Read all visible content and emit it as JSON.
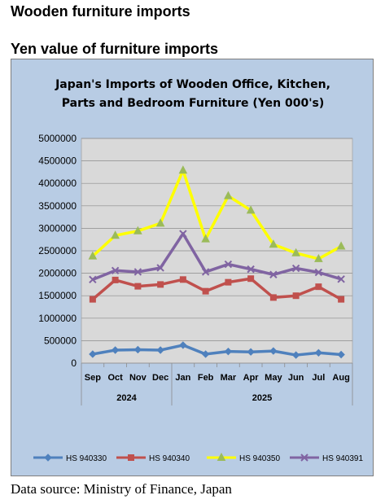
{
  "page": {
    "title": "Wooden furniture imports",
    "subtitle": "Yen value of furniture imports",
    "source": "Data source: Ministry of Finance, Japan"
  },
  "chart_data": {
    "type": "line",
    "title_lines": [
      "Japan's Imports of  Wooden  Office, Kitchen,",
      "Parts and Bedroom Furniture (Yen 000's)"
    ],
    "xlabel": "",
    "ylabel": "",
    "ylim": [
      0,
      5000000
    ],
    "yticks": [
      0,
      500000,
      1000000,
      1500000,
      2000000,
      2500000,
      3000000,
      3500000,
      4000000,
      4500000,
      5000000
    ],
    "categories": [
      "Sep",
      "Oct",
      "Nov",
      "Dec",
      "Jan",
      "Feb",
      "Mar",
      "Apr",
      "May",
      "Jun",
      "Jul",
      "Aug"
    ],
    "category_groups": [
      {
        "label": "2024",
        "count": 4
      },
      {
        "label": "2025",
        "count": 8
      }
    ],
    "grid": true,
    "legend_position": "bottom",
    "series": [
      {
        "name": "HS 940330",
        "color": "#4f81bd",
        "marker": "diamond",
        "values": [
          200000,
          290000,
          300000,
          290000,
          400000,
          200000,
          260000,
          250000,
          270000,
          180000,
          230000,
          190000
        ]
      },
      {
        "name": "HS 940340",
        "color": "#c0504d",
        "marker": "square",
        "values": [
          1420000,
          1850000,
          1710000,
          1750000,
          1860000,
          1600000,
          1800000,
          1880000,
          1460000,
          1500000,
          1700000,
          1420000
        ]
      },
      {
        "name": "HS 940350",
        "color": "#ffff00",
        "marker": "triangle",
        "values": [
          2380000,
          2840000,
          2940000,
          3110000,
          4290000,
          2760000,
          3720000,
          3400000,
          2640000,
          2450000,
          2320000,
          2600000
        ]
      },
      {
        "name": "HS 940391",
        "color": "#8064a2",
        "marker": "x",
        "values": [
          1860000,
          2060000,
          2030000,
          2120000,
          2880000,
          2030000,
          2200000,
          2090000,
          1970000,
          2110000,
          2020000,
          1870000
        ]
      }
    ]
  }
}
